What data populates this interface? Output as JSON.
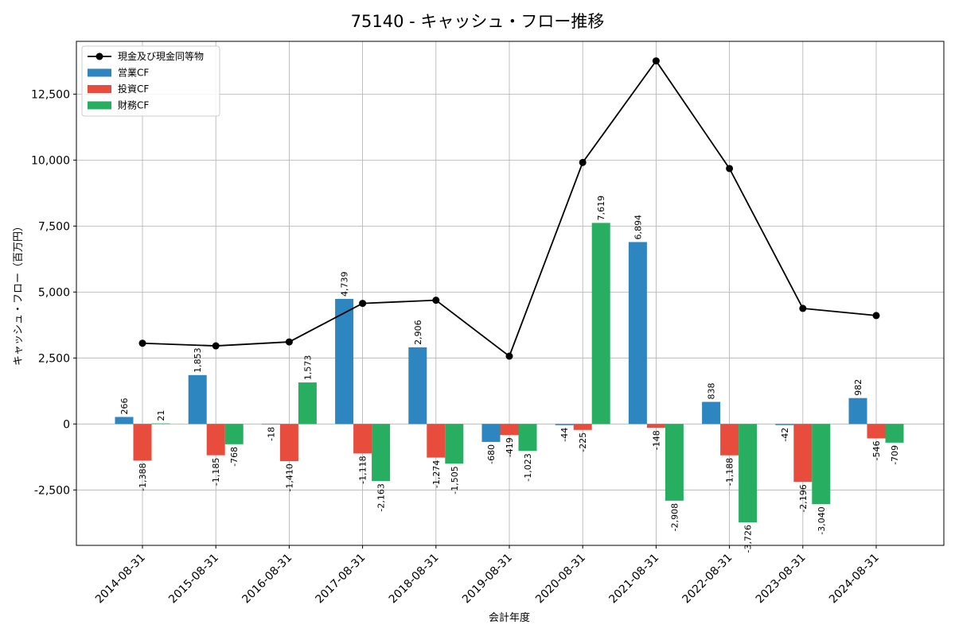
{
  "chart_data": {
    "type": "bar",
    "title": "75140 - キャッシュ・フロー推移",
    "xlabel": "会計年度",
    "ylabel": "キャッシュ・フロー（百万円）",
    "ylim": [
      -4600,
      14500
    ],
    "yticks": [
      -2500,
      0,
      2500,
      5000,
      7500,
      10000,
      12500
    ],
    "ytick_labels": [
      "-2,500",
      "0",
      "2,500",
      "5,000",
      "7,500",
      "10,000",
      "12,500"
    ],
    "grid": true,
    "legend_position": "top-left",
    "categories": [
      "2014-08-31",
      "2015-08-31",
      "2016-08-31",
      "2017-08-31",
      "2018-08-31",
      "2019-08-31",
      "2020-08-31",
      "2021-08-31",
      "2022-08-31",
      "2023-08-31",
      "2024-08-31"
    ],
    "series": [
      {
        "name": "営業CF",
        "kind": "bar",
        "color": "#2e86c1",
        "values": [
          266,
          1853,
          -18,
          4739,
          2906,
          -680,
          -44,
          6894,
          838,
          -42,
          982
        ],
        "labels": [
          "266",
          "1,853",
          "-18",
          "4,739",
          "2,906",
          "-680",
          "-44",
          "6,894",
          "838",
          "-42",
          "982"
        ]
      },
      {
        "name": "投資CF",
        "kind": "bar",
        "color": "#e74c3c",
        "values": [
          -1388,
          -1185,
          -1410,
          -1118,
          -1274,
          -419,
          -225,
          -148,
          -1188,
          -2196,
          -546
        ],
        "labels": [
          "-1,388",
          "-1,185",
          "-1,410",
          "-1,118",
          "-1,274",
          "-419",
          "-225",
          "-148",
          "-1,188",
          "-2,196",
          "-546"
        ]
      },
      {
        "name": "財務CF",
        "kind": "bar",
        "color": "#27ae60",
        "values": [
          21,
          -768,
          1573,
          -2163,
          -1505,
          -1023,
          7619,
          -2908,
          -3726,
          -3040,
          -709
        ],
        "labels": [
          "21",
          "-768",
          "1,573",
          "-2,163",
          "-1,505",
          "-1,023",
          "7,619",
          "-2,908",
          "-3,726",
          "-3,040",
          "-709"
        ]
      },
      {
        "name": "現金及び現金同等物",
        "kind": "line",
        "color": "#000000",
        "values": [
          3060,
          2960,
          3110,
          4570,
          4690,
          2570,
          9910,
          13760,
          9680,
          4380,
          4110
        ]
      }
    ]
  }
}
